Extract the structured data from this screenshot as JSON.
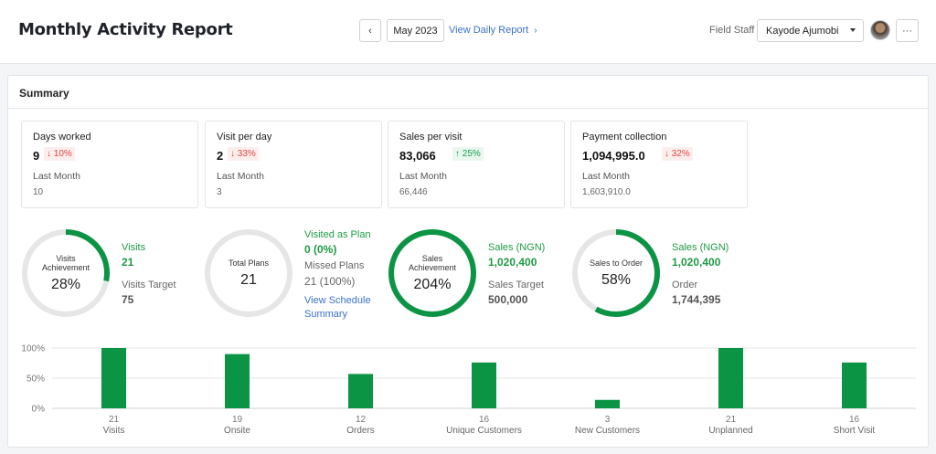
{
  "header": {
    "title": "Monthly Activity Report",
    "prev_icon": "‹",
    "month": "May 2023",
    "daily_link": "View Daily Report",
    "daily_link_icon": "›",
    "staff_label": "Field Staff",
    "staff_value": "Kayode Ajumobi",
    "more_label": "···"
  },
  "summary": {
    "title": "Summary",
    "cards": [
      {
        "label": "Days worked",
        "value": "9",
        "delta": "↓ 10%",
        "direction": "down",
        "last_label": "Last Month",
        "last_value": "10"
      },
      {
        "label": "Visit per day",
        "value": "2",
        "delta": "↓ 33%",
        "direction": "down",
        "last_label": "Last Month",
        "last_value": "3"
      },
      {
        "label": "Sales per visit",
        "value": "83,066",
        "delta": "↑ 25%",
        "direction": "up",
        "last_label": "Last Month",
        "last_value": "66,446"
      },
      {
        "label": "Payment collection",
        "value": "1,094,995.0",
        "delta": "↓ 32%",
        "direction": "down",
        "last_label": "Last Month",
        "last_value": "1,603,910.0"
      }
    ],
    "gauges": [
      {
        "caption": "Visits Achievement",
        "value": "28%",
        "fraction": 0.28,
        "info1_label": "Visits",
        "info1_value": "21",
        "info2_label": "Visits Target",
        "info2_value": "75"
      },
      {
        "caption": "Total Plans",
        "value": "21",
        "fraction": 0,
        "info1_label": "Visited as Plan",
        "info1_value": "0 (0%)",
        "info2_label": "Missed Plans",
        "info2_value": "21 (100%)",
        "link": "View Schedule Summary"
      },
      {
        "caption": "Sales Achievement",
        "value": "204%",
        "fraction": 1.0,
        "info1_label": "Sales (NGN)",
        "info1_value": "1,020,400",
        "info2_label": "Sales Target",
        "info2_value": "500,000"
      },
      {
        "caption": "Sales to Order",
        "value": "58%",
        "fraction": 0.58,
        "info1_label": "Sales (NGN)",
        "info1_value": "1,020,400",
        "info2_label": "Order",
        "info2_value": "1,744,395"
      }
    ]
  },
  "chart_data": {
    "type": "bar",
    "categories": [
      "Visits",
      "Onsite",
      "Orders",
      "Unique Customers",
      "New Customers",
      "Unplanned",
      "Short Visit"
    ],
    "counts": [
      "21",
      "19",
      "12",
      "16",
      "3",
      "21",
      "16"
    ],
    "values": [
      100,
      90,
      57,
      76,
      14,
      100,
      76
    ],
    "yticks": [
      "100%",
      "50%",
      "0%"
    ],
    "ylim": [
      0,
      100
    ],
    "color": "#0b9444"
  },
  "colors": {
    "accent_green": "#0b9444",
    "link_blue": "#3a72c8",
    "down_red": "#e0443c",
    "gauge_track": "#e6e6e6"
  }
}
